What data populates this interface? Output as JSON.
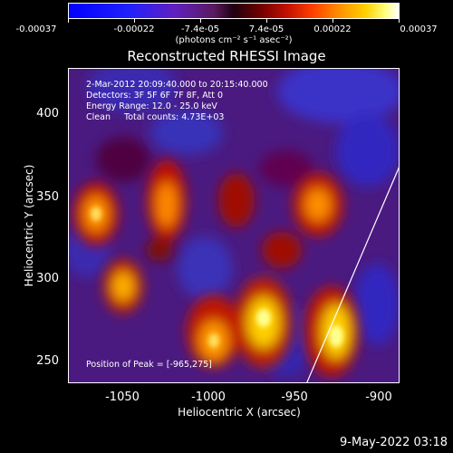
{
  "colorbar": {
    "tick_labels": [
      "-0.00037",
      "-0.00022",
      "-7.4e-05",
      "7.4e-05",
      "0.00022",
      "0.00037"
    ],
    "units": "(photons cm⁻² s⁻¹ asec⁻²)"
  },
  "title": "Reconstructed RHESSI Image",
  "info": {
    "time_range": "2-Mar-2012 20:09:40.000 to 20:15:40.000",
    "detectors": "Detectors: 3F 5F 6F 7F 8F, Att 0",
    "energy": "Energy Range: 12.0 - 25.0 keV",
    "clean": "Clean     Total counts: 4.73E+03",
    "peak": "Position of Peak = [-965,275]"
  },
  "axes": {
    "xlabel": "Heliocentric X (arcsec)",
    "ylabel": "Heliocentric Y (arcsec)",
    "x_ticks": [
      "-1050",
      "-1000",
      "-950",
      "-900"
    ],
    "y_ticks": [
      "400",
      "350",
      "300",
      "250"
    ]
  },
  "footer_date": "9-May-2022 03:18"
}
